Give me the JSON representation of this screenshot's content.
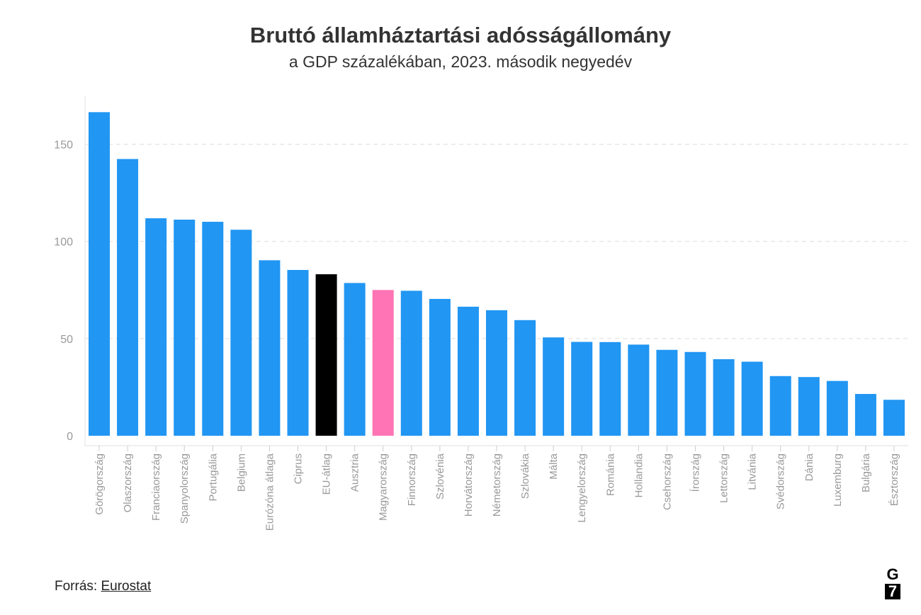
{
  "chart_data": {
    "type": "bar",
    "title": "Bruttó államháztartási adósságállomány",
    "subtitle": "a GDP százalékában, 2023. második negyedév",
    "xlabel": "",
    "ylabel": "",
    "ylim": [
      0,
      175
    ],
    "yticks": [
      0,
      50,
      100,
      150
    ],
    "grid": true,
    "categories": [
      "Görögország",
      "Olaszország",
      "Franciaország",
      "Spanyolország",
      "Portugália",
      "Belgium",
      "Eurózóna átlaga",
      "Ciprus",
      "EU-átlag",
      "Ausztria",
      "Magyarország",
      "Finnország",
      "Szlovénia",
      "Horvátország",
      "Németország",
      "Szlovákia",
      "Málta",
      "Lengyelország",
      "Románia",
      "Hollandia",
      "Csehország",
      "Írország",
      "Lettország",
      "Litvánia",
      "Svédország",
      "Dánia",
      "Luxemburg",
      "Bulgária",
      "Észtország"
    ],
    "values": [
      166.5,
      142.4,
      111.9,
      111.2,
      110.1,
      106.0,
      90.3,
      85.3,
      83.1,
      78.6,
      75.0,
      74.6,
      70.4,
      66.4,
      64.6,
      59.5,
      50.6,
      48.3,
      48.2,
      46.9,
      44.2,
      43.1,
      39.4,
      38.1,
      30.7,
      30.2,
      28.2,
      21.5,
      18.5
    ],
    "colors": {
      "default": "#2196f3",
      "highlight_eu": "#000000",
      "highlight_hu": "#ff74b4"
    },
    "bar_colors": [
      "#2196f3",
      "#2196f3",
      "#2196f3",
      "#2196f3",
      "#2196f3",
      "#2196f3",
      "#2196f3",
      "#2196f3",
      "#000000",
      "#2196f3",
      "#ff74b4",
      "#2196f3",
      "#2196f3",
      "#2196f3",
      "#2196f3",
      "#2196f3",
      "#2196f3",
      "#2196f3",
      "#2196f3",
      "#2196f3",
      "#2196f3",
      "#2196f3",
      "#2196f3",
      "#2196f3",
      "#2196f3",
      "#2196f3",
      "#2196f3",
      "#2196f3",
      "#2196f3"
    ]
  },
  "source": {
    "label": "Forrás:",
    "link_text": "Eurostat"
  },
  "logo": {
    "top": "G",
    "bottom": "7"
  }
}
